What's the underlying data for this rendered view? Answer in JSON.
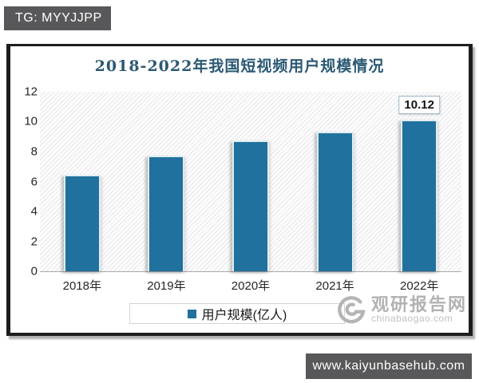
{
  "badges": {
    "top_label": "TG: MYYJJPP",
    "bottom_label": "www.kaiyunbasehub.com"
  },
  "watermark": {
    "name": "观研报告网",
    "domain": "chinabaogao.com",
    "logo_icon": "swirl-logo"
  },
  "chart_data": {
    "type": "bar",
    "title": "2018-2022年我国短视频用户规模情况",
    "categories": [
      "2018年",
      "2019年",
      "2020年",
      "2021年",
      "2022年"
    ],
    "values": [
      6.48,
      7.73,
      8.73,
      9.34,
      10.12
    ],
    "data_labels": [
      null,
      null,
      null,
      null,
      "10.12"
    ],
    "legend": {
      "label": "用户规模(亿人)",
      "position": "bottom"
    },
    "xlabel": "",
    "ylabel": "",
    "ylim": [
      0,
      12
    ],
    "yticks": [
      0,
      2,
      4,
      6,
      8,
      10,
      12
    ],
    "grid": false,
    "bar_color": "#20719d",
    "plot_background": "diagonal-hatch"
  },
  "colors": {
    "accent_bar": "#20719d",
    "title_text": "#2b5873",
    "badge_background": "#58585a",
    "watermark_gray": "#b2b2b2"
  }
}
